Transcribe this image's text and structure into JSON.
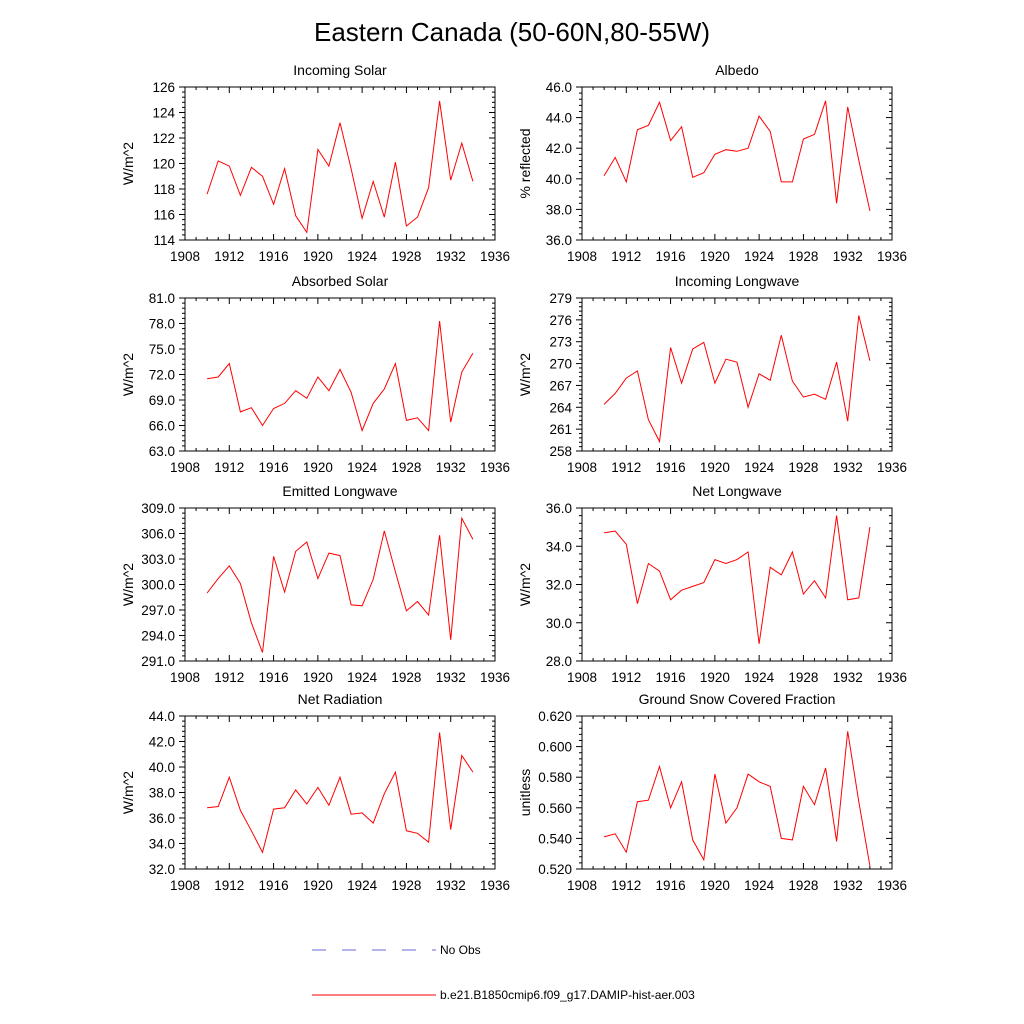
{
  "figure": {
    "title": "Eastern Canada (50-60N,80-55W)"
  },
  "chart_data": [
    {
      "type": "line",
      "title": "Incoming Solar",
      "xlabel": "",
      "ylabel": "W/m^2",
      "xlim": [
        1908,
        1936
      ],
      "ylim": [
        114,
        126
      ],
      "xticks": [
        "1908",
        "1912",
        "1916",
        "1920",
        "1924",
        "1928",
        "1932",
        "1936"
      ],
      "yticks": [
        "114",
        "116",
        "118",
        "120",
        "122",
        "124",
        "126"
      ],
      "x": [
        1910,
        1911,
        1912,
        1913,
        1914,
        1915,
        1916,
        1917,
        1918,
        1919,
        1920,
        1921,
        1922,
        1923,
        1924,
        1925,
        1926,
        1927,
        1928,
        1929,
        1930,
        1931,
        1932,
        1933,
        1934
      ],
      "series": [
        {
          "name": "b.e21.B1850cmip6.f09_g17.DAMIP-hist-aer.003",
          "color": "#ff0000",
          "values": [
            117.6,
            120.2,
            119.8,
            117.5,
            119.7,
            119.0,
            116.8,
            119.6,
            115.9,
            114.6,
            121.1,
            119.8,
            123.2,
            119.6,
            115.7,
            118.6,
            115.8,
            120.1,
            115.1,
            115.8,
            118.1,
            124.9,
            118.7,
            121.6,
            118.6
          ]
        }
      ]
    },
    {
      "type": "line",
      "title": "Albedo",
      "xlabel": "",
      "ylabel": "% reflected",
      "xlim": [
        1908,
        1936
      ],
      "ylim": [
        36,
        46
      ],
      "xticks": [
        "1908",
        "1912",
        "1916",
        "1920",
        "1924",
        "1928",
        "1932",
        "1936"
      ],
      "yticks": [
        "36.0",
        "38.0",
        "40.0",
        "42.0",
        "44.0",
        "46.0"
      ],
      "x": [
        1910,
        1911,
        1912,
        1913,
        1914,
        1915,
        1916,
        1917,
        1918,
        1919,
        1920,
        1921,
        1922,
        1923,
        1924,
        1925,
        1926,
        1927,
        1928,
        1929,
        1930,
        1931,
        1932,
        1933,
        1934
      ],
      "series": [
        {
          "name": "b.e21.B1850cmip6.f09_g17.DAMIP-hist-aer.003",
          "color": "#ff0000",
          "values": [
            40.2,
            41.4,
            39.8,
            43.2,
            43.5,
            45.0,
            42.5,
            43.4,
            40.1,
            40.4,
            41.6,
            41.9,
            41.8,
            42.0,
            44.1,
            43.1,
            39.8,
            39.8,
            42.6,
            42.9,
            45.1,
            38.4,
            44.7,
            41.2,
            37.9
          ]
        }
      ]
    },
    {
      "type": "line",
      "title": "Absorbed Solar",
      "xlabel": "",
      "ylabel": "W/m^2",
      "xlim": [
        1908,
        1936
      ],
      "ylim": [
        63,
        81
      ],
      "xticks": [
        "1908",
        "1912",
        "1916",
        "1920",
        "1924",
        "1928",
        "1932",
        "1936"
      ],
      "yticks": [
        "63.0",
        "66.0",
        "69.0",
        "72.0",
        "75.0",
        "78.0",
        "81.0"
      ],
      "x": [
        1910,
        1911,
        1912,
        1913,
        1914,
        1915,
        1916,
        1917,
        1918,
        1919,
        1920,
        1921,
        1922,
        1923,
        1924,
        1925,
        1926,
        1927,
        1928,
        1929,
        1930,
        1931,
        1932,
        1933,
        1934
      ],
      "series": [
        {
          "name": "b.e21.B1850cmip6.f09_g17.DAMIP-hist-aer.003",
          "color": "#ff0000",
          "values": [
            71.5,
            71.7,
            73.3,
            67.6,
            68.1,
            66.0,
            68.0,
            68.6,
            70.1,
            69.2,
            71.7,
            70.1,
            72.6,
            69.9,
            65.4,
            68.6,
            70.3,
            73.3,
            66.6,
            66.9,
            65.4,
            78.3,
            66.4,
            72.3,
            74.5
          ]
        }
      ]
    },
    {
      "type": "line",
      "title": "Incoming Longwave",
      "xlabel": "",
      "ylabel": "W/m^2",
      "xlim": [
        1908,
        1936
      ],
      "ylim": [
        258,
        279
      ],
      "xticks": [
        "1908",
        "1912",
        "1916",
        "1920",
        "1924",
        "1928",
        "1932",
        "1936"
      ],
      "yticks": [
        "258",
        "261",
        "264",
        "267",
        "270",
        "273",
        "276",
        "279"
      ],
      "x": [
        1910,
        1911,
        1912,
        1913,
        1914,
        1915,
        1916,
        1917,
        1918,
        1919,
        1920,
        1921,
        1922,
        1923,
        1924,
        1925,
        1926,
        1927,
        1928,
        1929,
        1930,
        1931,
        1932,
        1933,
        1934
      ],
      "series": [
        {
          "name": "b.e21.B1850cmip6.f09_g17.DAMIP-hist-aer.003",
          "color": "#ff0000",
          "values": [
            264.4,
            265.9,
            268.0,
            269.0,
            262.3,
            259.3,
            272.2,
            267.3,
            272.0,
            272.9,
            267.3,
            270.6,
            270.2,
            264.0,
            268.6,
            267.7,
            273.9,
            267.6,
            265.4,
            265.8,
            265.1,
            270.2,
            262.1,
            276.6,
            270.4
          ]
        }
      ]
    },
    {
      "type": "line",
      "title": "Emitted Longwave",
      "xlabel": "",
      "ylabel": "W/m^2",
      "xlim": [
        1908,
        1936
      ],
      "ylim": [
        291,
        309
      ],
      "xticks": [
        "1908",
        "1912",
        "1916",
        "1920",
        "1924",
        "1928",
        "1932",
        "1936"
      ],
      "yticks": [
        "291.0",
        "294.0",
        "297.0",
        "300.0",
        "303.0",
        "306.0",
        "309.0"
      ],
      "x": [
        1910,
        1911,
        1912,
        1913,
        1914,
        1915,
        1916,
        1917,
        1918,
        1919,
        1920,
        1921,
        1922,
        1923,
        1924,
        1925,
        1926,
        1927,
        1928,
        1929,
        1930,
        1931,
        1932,
        1933,
        1934
      ],
      "series": [
        {
          "name": "b.e21.B1850cmip6.f09_g17.DAMIP-hist-aer.003",
          "color": "#ff0000",
          "values": [
            299.0,
            300.7,
            302.2,
            300.1,
            295.5,
            292.0,
            303.3,
            299.1,
            303.9,
            305.0,
            300.7,
            303.7,
            303.4,
            297.6,
            297.5,
            300.6,
            306.3,
            301.5,
            296.9,
            298.0,
            296.4,
            305.8,
            293.5,
            307.8,
            305.3
          ]
        }
      ]
    },
    {
      "type": "line",
      "title": "Net Longwave",
      "xlabel": "",
      "ylabel": "W/m^2",
      "xlim": [
        1908,
        1936
      ],
      "ylim": [
        28,
        36
      ],
      "xticks": [
        "1908",
        "1912",
        "1916",
        "1920",
        "1924",
        "1928",
        "1932",
        "1936"
      ],
      "yticks": [
        "28.0",
        "30.0",
        "32.0",
        "34.0",
        "36.0"
      ],
      "x": [
        1910,
        1911,
        1912,
        1913,
        1914,
        1915,
        1916,
        1917,
        1918,
        1919,
        1920,
        1921,
        1922,
        1923,
        1924,
        1925,
        1926,
        1927,
        1928,
        1929,
        1930,
        1931,
        1932,
        1933,
        1934
      ],
      "series": [
        {
          "name": "b.e21.B1850cmip6.f09_g17.DAMIP-hist-aer.003",
          "color": "#ff0000",
          "values": [
            34.7,
            34.8,
            34.1,
            31.0,
            33.1,
            32.7,
            31.2,
            31.7,
            31.9,
            32.1,
            33.3,
            33.1,
            33.3,
            33.7,
            28.9,
            32.9,
            32.5,
            33.7,
            31.5,
            32.2,
            31.3,
            35.6,
            31.2,
            31.3,
            35.0
          ]
        }
      ]
    },
    {
      "type": "line",
      "title": "Net Radiation",
      "xlabel": "",
      "ylabel": "W/m^2",
      "xlim": [
        1908,
        1936
      ],
      "ylim": [
        32,
        44
      ],
      "xticks": [
        "1908",
        "1912",
        "1916",
        "1920",
        "1924",
        "1928",
        "1932",
        "1936"
      ],
      "yticks": [
        "32.0",
        "34.0",
        "36.0",
        "38.0",
        "40.0",
        "42.0",
        "44.0"
      ],
      "x": [
        1910,
        1911,
        1912,
        1913,
        1914,
        1915,
        1916,
        1917,
        1918,
        1919,
        1920,
        1921,
        1922,
        1923,
        1924,
        1925,
        1926,
        1927,
        1928,
        1929,
        1930,
        1931,
        1932,
        1933,
        1934
      ],
      "series": [
        {
          "name": "b.e21.B1850cmip6.f09_g17.DAMIP-hist-aer.003",
          "color": "#ff0000",
          "values": [
            36.8,
            36.9,
            39.2,
            36.6,
            35.0,
            33.3,
            36.7,
            36.8,
            38.2,
            37.1,
            38.4,
            37.0,
            39.2,
            36.3,
            36.4,
            35.6,
            37.9,
            39.6,
            35.0,
            34.8,
            34.1,
            42.7,
            35.1,
            40.9,
            39.6
          ]
        }
      ]
    },
    {
      "type": "line",
      "title": "Ground Snow Covered Fraction",
      "xlabel": "",
      "ylabel": "unitless",
      "xlim": [
        1908,
        1936
      ],
      "ylim": [
        0.52,
        0.62
      ],
      "xticks": [
        "1908",
        "1912",
        "1916",
        "1920",
        "1924",
        "1928",
        "1932",
        "1936"
      ],
      "yticks": [
        "0.520",
        "0.540",
        "0.560",
        "0.580",
        "0.600",
        "0.620"
      ],
      "x": [
        1910,
        1911,
        1912,
        1913,
        1914,
        1915,
        1916,
        1917,
        1918,
        1919,
        1920,
        1921,
        1922,
        1923,
        1924,
        1925,
        1926,
        1927,
        1928,
        1929,
        1930,
        1931,
        1932,
        1933,
        1934
      ],
      "series": [
        {
          "name": "b.e21.B1850cmip6.f09_g17.DAMIP-hist-aer.003",
          "color": "#ff0000",
          "values": [
            0.541,
            0.543,
            0.531,
            0.564,
            0.565,
            0.587,
            0.56,
            0.577,
            0.539,
            0.526,
            0.582,
            0.55,
            0.56,
            0.582,
            0.577,
            0.574,
            0.54,
            0.539,
            0.574,
            0.562,
            0.586,
            0.538,
            0.61,
            0.564,
            0.522
          ]
        }
      ]
    }
  ],
  "legend": {
    "entries": [
      {
        "label": "No Obs",
        "color": "#6a6ad8",
        "style": "dashed"
      },
      {
        "label": "b.e21.B1850cmip6.f09_g17.DAMIP-hist-aer.003",
        "color": "#ff0000",
        "style": "solid"
      }
    ]
  }
}
